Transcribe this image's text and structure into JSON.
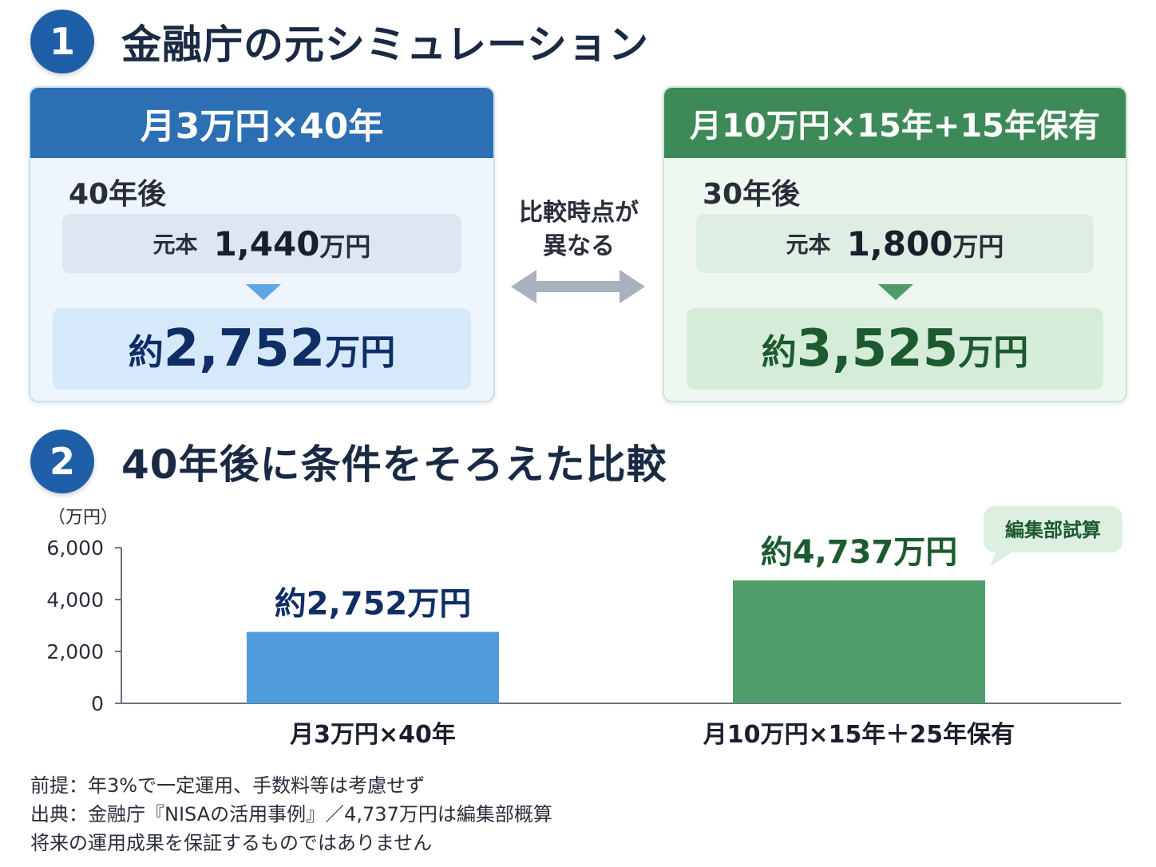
{
  "section1": {
    "number": "1",
    "title": "金融庁の元シミュレーション"
  },
  "plan_a": {
    "header": "月3万円×40年",
    "years_label": "40年後",
    "principal_label": "元本",
    "principal_value": "1,440",
    "principal_unit": "万円",
    "result_prefix": "約",
    "result_value": "2,752",
    "result_unit": "万円",
    "color": "#2d6fb3"
  },
  "plan_b": {
    "header": "月10万円×15年+15年保有",
    "years_label": "30年後",
    "principal_label": "元本",
    "principal_value": "1,800",
    "principal_unit": "万円",
    "result_prefix": "約",
    "result_value": "3,525",
    "result_unit": "万円",
    "color": "#3d8a58"
  },
  "comparison_note": {
    "line1": "比較時点が",
    "line2": "異なる"
  },
  "section2": {
    "number": "2",
    "title": "40年後に条件をそろえた比較"
  },
  "chart_data": {
    "type": "bar",
    "categories": [
      "月3万円×40年",
      "月10万円×15年＋25年保有"
    ],
    "values": [
      2752,
      4737
    ],
    "value_labels": [
      "約2,752万円",
      "約4,737万円"
    ],
    "colors": [
      "#4f9bdb",
      "#4f9e6c"
    ],
    "label_colors": [
      "#0f2e66",
      "#1d5a2f"
    ],
    "unit_label": "（万円）",
    "yticks": [
      0,
      2000,
      4000,
      6000
    ],
    "ytick_labels": [
      "0",
      "2,000",
      "4,000",
      "6,000"
    ],
    "ylim": [
      0,
      6000
    ],
    "annotation": "編集部試算",
    "grid": false
  },
  "footer": {
    "line1": "前提：年3%で一定運用、手数料等は考慮せず",
    "line2": "出典：金融庁『NISAの活用事例』／4,737万円は編集部概算",
    "line3": "将来の運用成果を保証するものではありません"
  }
}
